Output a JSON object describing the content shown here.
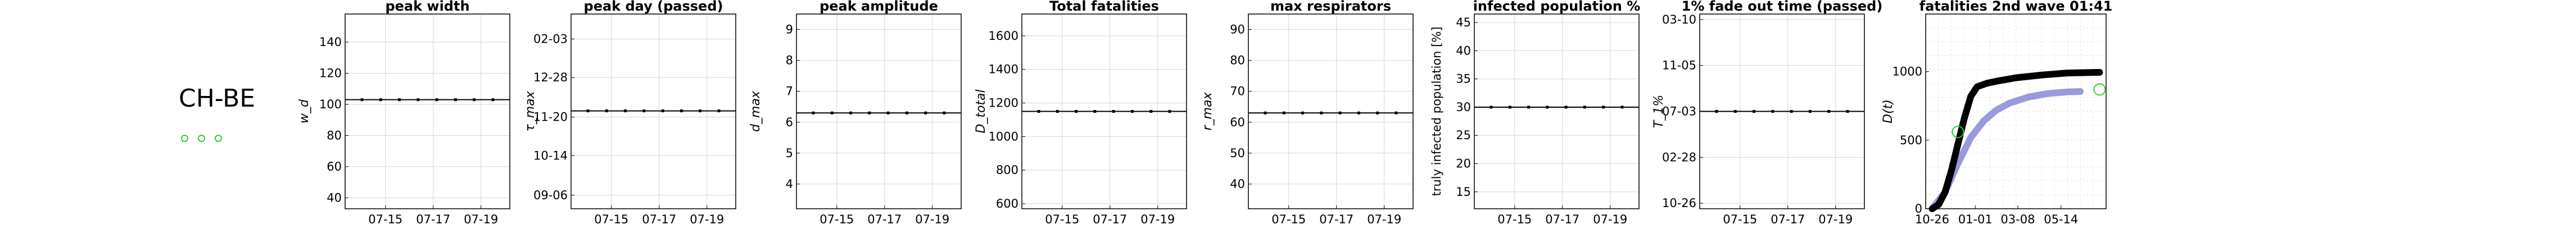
{
  "region_label": "CH-BE",
  "legend_markers": [
    "green-circle-1",
    "green-circle-2",
    "green-circle-3"
  ],
  "colors": {
    "main_line": "#000000",
    "projection": "#9999dd",
    "marker": "#33cc33",
    "grid": "#d6d6d6"
  },
  "chart_data": [
    {
      "type": "line",
      "title": "peak width",
      "ylabel": "w_d",
      "x_ticks": [
        "07-15",
        "07-17",
        "07-19"
      ],
      "y_ticks": [
        "40",
        "60",
        "80",
        "100",
        "120",
        "140"
      ],
      "ylim": [
        33,
        158
      ],
      "series": [
        {
          "values": [
            103,
            103,
            103,
            103,
            103,
            103,
            103,
            103
          ]
        }
      ]
    },
    {
      "type": "line",
      "title": "peak day (passed)",
      "ylabel": "τ_max",
      "x_ticks": [
        "07-15",
        "07-17",
        "07-19"
      ],
      "y_ticks": [
        "09-06",
        "10-14",
        "11-20",
        "12-28",
        "02-03"
      ],
      "y_ticks_num": [
        1,
        39,
        76,
        114,
        151
      ],
      "ylim": [
        -12,
        175
      ],
      "series": [
        {
          "values": [
            82,
            82,
            82,
            82,
            82,
            82,
            82,
            82
          ]
        }
      ]
    },
    {
      "type": "line",
      "title": "peak amplitude",
      "ylabel": "d_max",
      "x_ticks": [
        "07-15",
        "07-17",
        "07-19"
      ],
      "y_ticks": [
        "4",
        "5",
        "6",
        "7",
        "8",
        "9"
      ],
      "ylim": [
        3.2,
        9.5
      ],
      "series": [
        {
          "values": [
            6.3,
            6.3,
            6.3,
            6.3,
            6.3,
            6.3,
            6.3,
            6.3
          ]
        }
      ]
    },
    {
      "type": "line",
      "title": "Total fatalities",
      "ylabel": "D_total",
      "x_ticks": [
        "07-15",
        "07-17",
        "07-19"
      ],
      "y_ticks": [
        "600",
        "800",
        "1000",
        "1200",
        "1400",
        "1600"
      ],
      "ylim": [
        570,
        1730
      ],
      "series": [
        {
          "values": [
            1150,
            1150,
            1150,
            1150,
            1150,
            1150,
            1150,
            1150
          ]
        }
      ]
    },
    {
      "type": "line",
      "title": "max respirators",
      "ylabel": "r_max",
      "x_ticks": [
        "07-15",
        "07-17",
        "07-19"
      ],
      "y_ticks": [
        "40",
        "50",
        "60",
        "70",
        "80",
        "90"
      ],
      "ylim": [
        32,
        95
      ],
      "series": [
        {
          "values": [
            63,
            63,
            63,
            63,
            63,
            63,
            63,
            63
          ]
        }
      ]
    },
    {
      "type": "line",
      "title": "infected population %",
      "ylabel": "truly infected population [%]",
      "x_ticks": [
        "07-15",
        "07-17",
        "07-19"
      ],
      "y_ticks": [
        "15",
        "20",
        "25",
        "30",
        "35",
        "40",
        "45"
      ],
      "ylim": [
        12,
        46.5
      ],
      "series": [
        {
          "values": [
            30,
            30,
            30,
            30,
            30,
            30,
            30,
            30
          ]
        }
      ]
    },
    {
      "type": "line",
      "title": "1% fade out time (passed)",
      "ylabel": "T_1%",
      "x_ticks": [
        "07-15",
        "07-17",
        "07-19"
      ],
      "y_ticks": [
        "10-26",
        "02-28",
        "07-03",
        "11-05",
        "03-10"
      ],
      "y_ticks_num": [
        0,
        125,
        250,
        375,
        500
      ],
      "ylim": [
        -15,
        515
      ],
      "series": [
        {
          "values": [
            250,
            250,
            250,
            250,
            250,
            250,
            250,
            250
          ]
        }
      ]
    },
    {
      "type": "line",
      "title": "fatalities 2nd wave 01:41",
      "ylabel": "D(t)",
      "x_ticks": [
        "10-26",
        "01-01",
        "03-08",
        "05-14"
      ],
      "x_ticks_num": [
        0,
        67,
        133,
        200
      ],
      "y_ticks": [
        "0",
        "500",
        "1000"
      ],
      "ylim": [
        0,
        1420
      ],
      "xlim": [
        -10,
        270
      ],
      "series": [
        {
          "values": [
            [
              0,
              0
            ],
            [
              10,
              30
            ],
            [
              20,
              120
            ],
            [
              30,
              280
            ],
            [
              40,
              470
            ],
            [
              50,
              660
            ],
            [
              60,
              820
            ],
            [
              70,
              890
            ],
            [
              85,
              915
            ],
            [
              100,
              930
            ],
            [
              130,
              955
            ],
            [
              170,
              975
            ],
            [
              210,
              990
            ],
            [
              260,
              995
            ]
          ]
        },
        {
          "values": [
            [
              0,
              0
            ],
            [
              20,
              120
            ],
            [
              40,
              330
            ],
            [
              60,
              520
            ],
            [
              80,
              640
            ],
            [
              100,
              720
            ],
            [
              120,
              770
            ],
            [
              150,
              815
            ],
            [
              180,
              840
            ],
            [
              210,
              852
            ],
            [
              230,
              855
            ]
          ]
        }
      ],
      "markers": [
        [
          40,
          560
        ],
        [
          260,
          870
        ]
      ]
    }
  ]
}
